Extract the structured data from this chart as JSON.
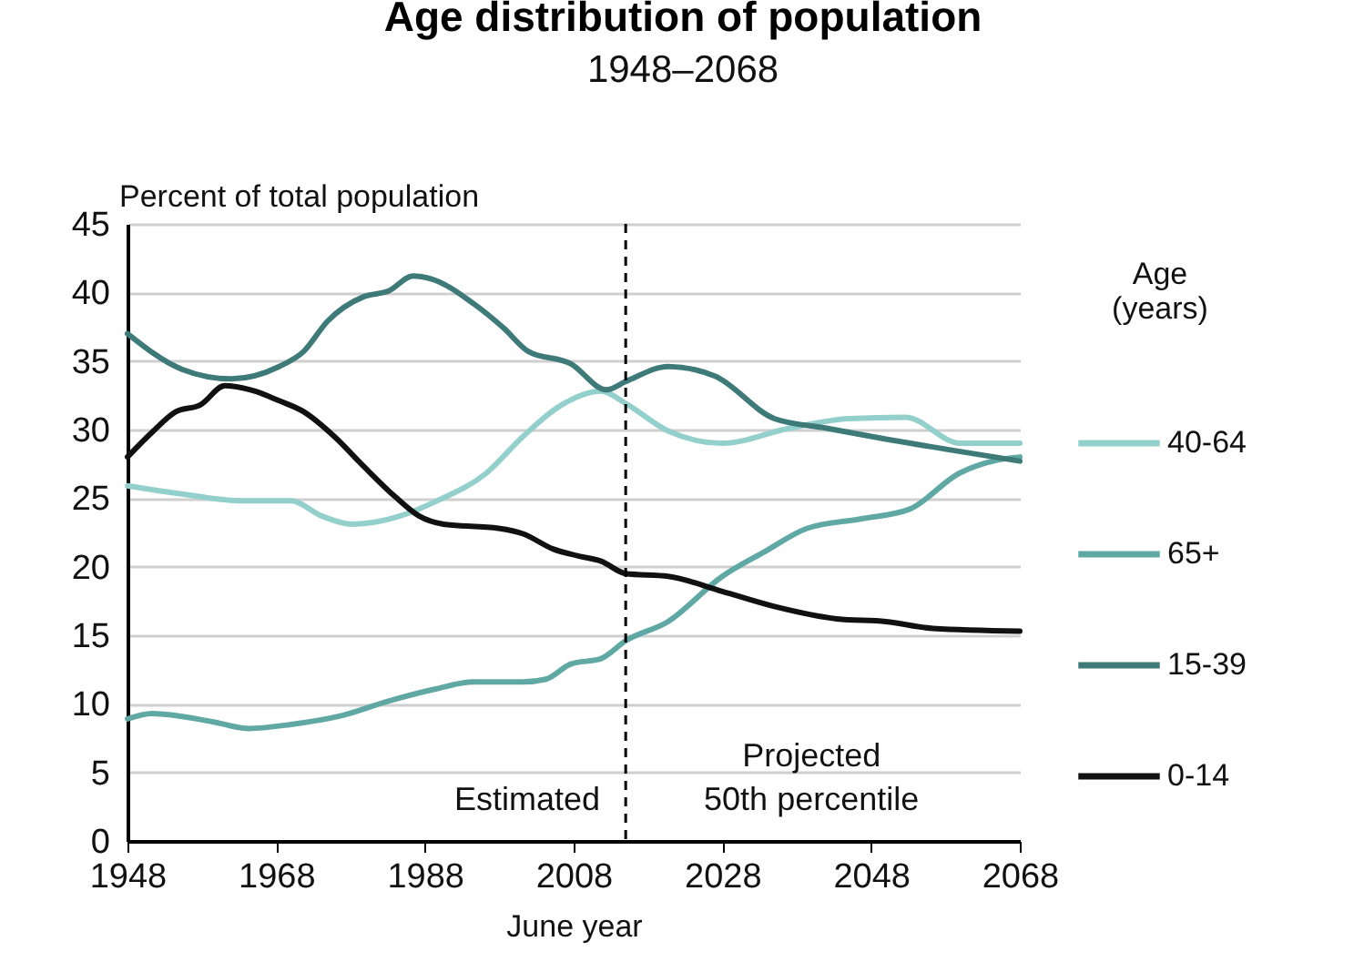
{
  "chart_data": {
    "type": "line",
    "title": "Age distribution of population",
    "subtitle": "1948–2068",
    "xlabel": "June year",
    "ylabel": "Percent of total population",
    "legend_title": "Age\n(years)",
    "legend": "right",
    "grid": "y",
    "line_style": "solid",
    "marker": "none",
    "xlim": [
      1948,
      2068
    ],
    "xticks": [
      1948,
      1968,
      1988,
      2008,
      2028,
      2048,
      2068
    ],
    "ylim": [
      0,
      45
    ],
    "yticks": [
      0,
      5,
      10,
      15,
      20,
      25,
      30,
      35,
      40,
      45
    ],
    "ref_lines": [
      {
        "axis": "x",
        "value": 2015,
        "line_style": "dashed",
        "color": "#000000"
      }
    ],
    "annotations": [
      "Estimated",
      "Projected\n50th percentile"
    ],
    "series": [
      {
        "name": "40-64",
        "color": "#93d0cc",
        "x": [
          1948,
          1955.3,
          1963.5,
          1970,
          1974.1,
          1978.2,
          1984.7,
          1989.6,
          1996.2,
          2001.2,
          2006.1,
          2011.7,
          2015,
          2020.7,
          2028,
          2037,
          2045,
          2052.6,
          2060,
          2068
        ],
        "values": [
          25.9,
          25.3,
          24.8,
          24.8,
          23.7,
          23.1,
          23.7,
          24.8,
          26.8,
          29.5,
          31.7,
          32.8,
          31.9,
          29.9,
          29,
          30.1,
          30.8,
          30.9,
          29,
          29
        ]
      },
      {
        "name": "65+",
        "color": "#5fa8a4",
        "x": [
          1948,
          1951.3,
          1959.4,
          1964.3,
          1970,
          1976.5,
          1983.1,
          1989.6,
          1994.5,
          2001.2,
          2004.3,
          2007.6,
          2011.7,
          2015,
          2020.7,
          2028,
          2033.7,
          2039.4,
          2046.7,
          2053.2,
          2059.8,
          2066.3,
          2068
        ],
        "values": [
          8.9,
          9.3,
          8.7,
          8.2,
          8.5,
          9.1,
          10.2,
          11.1,
          11.6,
          11.6,
          11.8,
          12.9,
          13.3,
          14.6,
          16,
          19.3,
          21.1,
          22.8,
          23.5,
          24.2,
          26.8,
          27.9,
          28
        ]
      },
      {
        "name": "15-39",
        "color": "#3d7a78",
        "x": [
          1948,
          1955.3,
          1961.9,
          1968.4,
          1971.7,
          1974.9,
          1979.8,
          1983.1,
          1986.4,
          1988.8,
          1994.5,
          1998.6,
          2001.9,
          2007.6,
          2012.4,
          2015,
          2020.7,
          2027,
          2035,
          2042,
          2050,
          2060,
          2068
        ],
        "values": [
          37,
          34.4,
          33.7,
          34.6,
          35.7,
          37.9,
          39.7,
          40.1,
          41.2,
          41,
          39.2,
          37.4,
          35.7,
          34.8,
          32.9,
          33.5,
          34.6,
          33.9,
          30.8,
          30.1,
          29.3,
          28.4,
          27.7
        ]
      },
      {
        "name": "0-14",
        "color": "#111111",
        "x": [
          1948,
          1951.3,
          1954.5,
          1957.8,
          1961.1,
          1965.2,
          1968.4,
          1971.7,
          1975.8,
          1979.8,
          1984,
          1987.2,
          1990.5,
          1997.9,
          2001.2,
          2005.2,
          2008.5,
          2011.7,
          2015,
          2020.7,
          2028,
          2035,
          2043.4,
          2050,
          2056.3,
          2068
        ],
        "values": [
          28,
          29.8,
          31.3,
          31.8,
          33.2,
          32.8,
          32.1,
          31.3,
          29.5,
          27.3,
          25.1,
          23.7,
          23.1,
          22.8,
          22.4,
          21.3,
          20.8,
          20.4,
          19.5,
          19.3,
          18.2,
          17.1,
          16.2,
          16,
          15.5,
          15.3
        ]
      }
    ]
  }
}
